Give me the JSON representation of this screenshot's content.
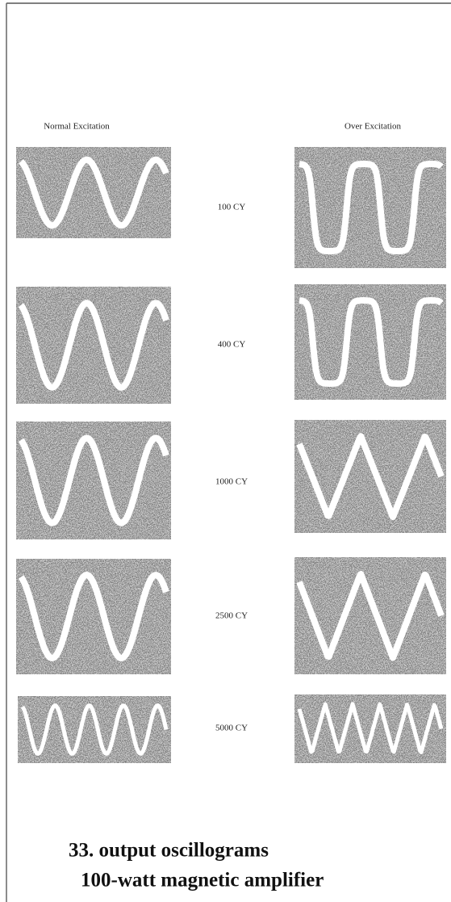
{
  "headers": {
    "normal": "Normal Excitation",
    "over": "Over Excitation"
  },
  "rows": [
    {
      "label": "100 CY"
    },
    {
      "label": "400 CY"
    },
    {
      "label": "1000 CY"
    },
    {
      "label": "2500 CY"
    },
    {
      "label": "5000 CY"
    }
  ],
  "caption": {
    "line1": "33. output oscillograms",
    "line2": "100-watt magnetic amplifier"
  }
}
